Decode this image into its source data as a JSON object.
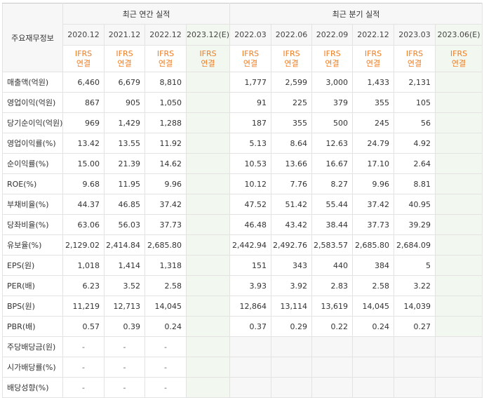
{
  "table": {
    "corner_label": "주요재무정보",
    "annual_group": "최근 연간 실적",
    "quarter_group": "최근 분기 실적",
    "annual_periods": [
      "2020.12",
      "2021.12",
      "2022.12",
      "2023.12(E)"
    ],
    "quarter_periods": [
      "2022.03",
      "2022.06",
      "2022.09",
      "2022.12",
      "2023.03",
      "2023.06(E)"
    ],
    "basis_line1": "IFRS",
    "basis_line2": "연결",
    "rows": [
      {
        "label": "매출액(억원)",
        "values": [
          "6,460",
          "6,679",
          "8,810",
          "",
          "1,777",
          "2,599",
          "3,000",
          "1,433",
          "2,131",
          ""
        ]
      },
      {
        "label": "영업이익(억원)",
        "values": [
          "867",
          "905",
          "1,050",
          "",
          "91",
          "225",
          "379",
          "355",
          "105",
          ""
        ]
      },
      {
        "label": "당기순이익(억원)",
        "values": [
          "969",
          "1,429",
          "1,288",
          "",
          "187",
          "355",
          "500",
          "245",
          "56",
          ""
        ]
      },
      {
        "label": "영업이익률(%)",
        "values": [
          "13.42",
          "13.55",
          "11.92",
          "",
          "5.13",
          "8.64",
          "12.63",
          "24.79",
          "4.92",
          ""
        ]
      },
      {
        "label": "순이익률(%)",
        "values": [
          "15.00",
          "21.39",
          "14.62",
          "",
          "10.53",
          "13.66",
          "16.67",
          "17.10",
          "2.64",
          ""
        ]
      },
      {
        "label": "ROE(%)",
        "values": [
          "9.68",
          "11.95",
          "9.96",
          "",
          "10.12",
          "7.76",
          "8.27",
          "9.96",
          "8.81",
          ""
        ]
      },
      {
        "label": "부채비율(%)",
        "values": [
          "44.37",
          "46.85",
          "37.42",
          "",
          "47.52",
          "51.42",
          "55.44",
          "37.42",
          "40.95",
          ""
        ]
      },
      {
        "label": "당좌비율(%)",
        "values": [
          "63.06",
          "56.03",
          "37.73",
          "",
          "46.48",
          "43.42",
          "38.44",
          "37.73",
          "39.29",
          ""
        ]
      },
      {
        "label": "유보율(%)",
        "values": [
          "2,129.02",
          "2,414.84",
          "2,685.80",
          "",
          "2,442.94",
          "2,492.76",
          "2,583.57",
          "2,685.80",
          "2,684.09",
          ""
        ]
      },
      {
        "label": "EPS(원)",
        "values": [
          "1,018",
          "1,414",
          "1,318",
          "",
          "151",
          "343",
          "440",
          "384",
          "5",
          ""
        ]
      },
      {
        "label": "PER(배)",
        "values": [
          "6.23",
          "3.52",
          "2.58",
          "",
          "3.93",
          "3.92",
          "2.83",
          "2.58",
          "3.22",
          ""
        ]
      },
      {
        "label": "BPS(원)",
        "values": [
          "11,219",
          "12,713",
          "14,045",
          "",
          "12,864",
          "13,114",
          "13,619",
          "14,045",
          "14,039",
          ""
        ]
      },
      {
        "label": "PBR(배)",
        "values": [
          "0.57",
          "0.39",
          "0.24",
          "",
          "0.37",
          "0.29",
          "0.22",
          "0.24",
          "0.27",
          ""
        ]
      },
      {
        "label": "주당배당금(원)",
        "values": [
          "-",
          "-",
          "-",
          "",
          "",
          "",
          "",
          "",
          "",
          ""
        ]
      },
      {
        "label": "시가배당률(%)",
        "values": [
          "-",
          "-",
          "-",
          "",
          "",
          "",
          "",
          "",
          "",
          ""
        ]
      },
      {
        "label": "배당성향(%)",
        "values": [
          "-",
          "-",
          "-",
          "",
          "",
          "",
          "",
          "",
          "",
          ""
        ]
      }
    ]
  },
  "colors": {
    "ifrs_text": "#ef7d22",
    "estimate_bg": "#f2f8ef",
    "header_bg": "#f7f7f7"
  }
}
